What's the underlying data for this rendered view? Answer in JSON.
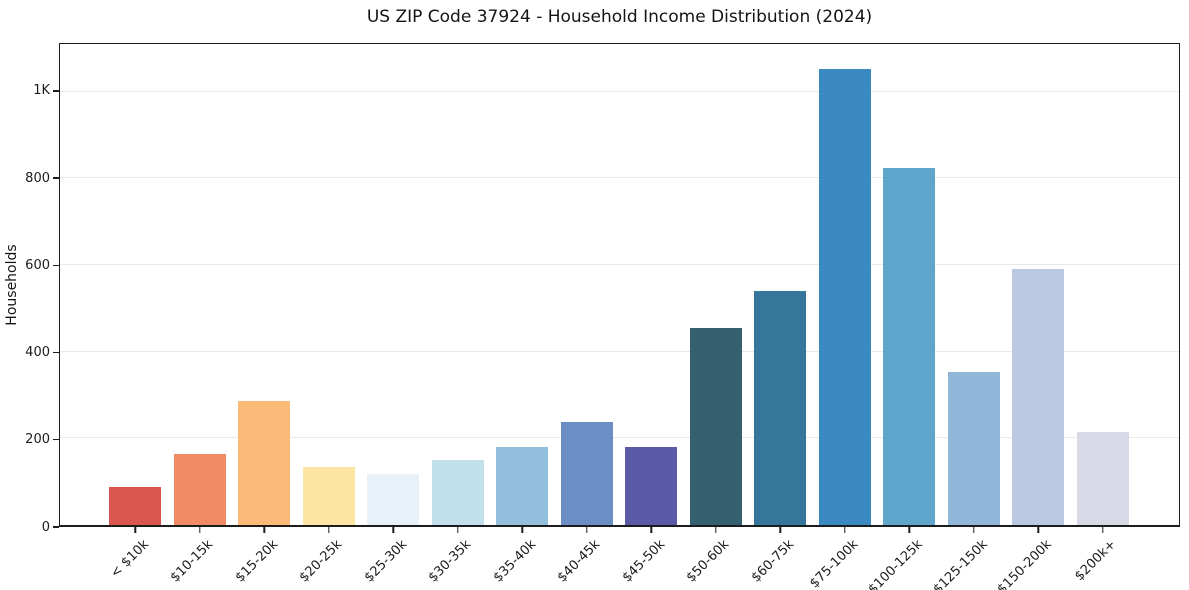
{
  "chart_data": {
    "type": "bar",
    "title": "US ZIP Code 37924 - Household Income Distribution (2024)",
    "xlabel": "",
    "ylabel": "Households",
    "categories": [
      "< $10k",
      "$10-15k",
      "$15-20k",
      "$20-25k",
      "$25-30k",
      "$30-35k",
      "$35-40k",
      "$40-45k",
      "$45-50k",
      "$50-60k",
      "$60-75k",
      "$75-100k",
      "$100-125k",
      "$125-150k",
      "$150-200k",
      "$200k+"
    ],
    "values": [
      88,
      165,
      287,
      135,
      117,
      149,
      181,
      238,
      179,
      454,
      539,
      1053,
      824,
      353,
      591,
      215
    ],
    "bar_colors": [
      "#d9564f",
      "#f28a65",
      "#fbba77",
      "#fce5a2",
      "#e7f1f7",
      "#c2e0ec",
      "#92bfdb",
      "#6b8ec5",
      "#5b5aa8",
      "#35606f",
      "#37769b",
      "#3a8ac1",
      "#5fa6cc",
      "#90b7d9",
      "#bac9e1",
      "#d7d9e6"
    ],
    "ylim": [
      0,
      1110
    ],
    "yticks": [
      {
        "value": 0,
        "label": "0"
      },
      {
        "value": 200,
        "label": "200"
      },
      {
        "value": 400,
        "label": "400"
      },
      {
        "value": 600,
        "label": "600"
      },
      {
        "value": 800,
        "label": "800"
      },
      {
        "value": 1000,
        "label": "1K"
      }
    ],
    "grid": "horizontal",
    "legend": "none",
    "layout": {
      "background_color": "#ffffff",
      "spine_color": "#1c1c1c",
      "gridline_color": "#e9e9e9",
      "text_color": "#141414",
      "x_tick_rotation_deg": 45
    }
  }
}
